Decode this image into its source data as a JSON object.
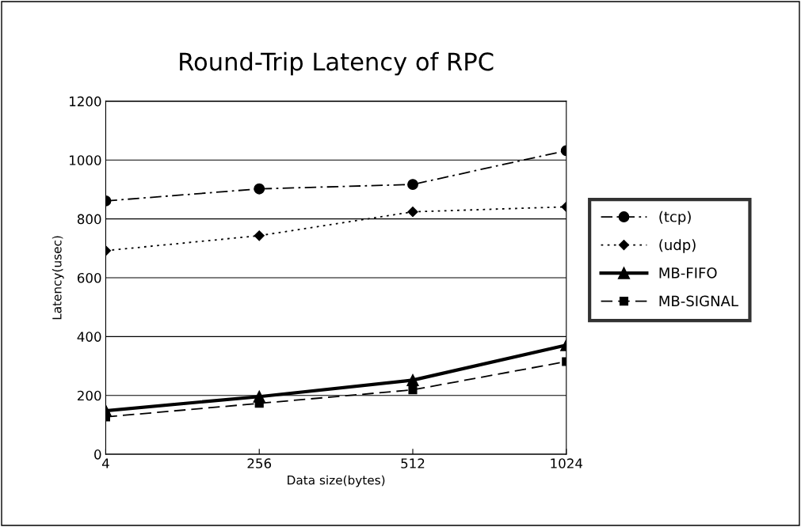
{
  "chart_data": {
    "type": "line",
    "title": "Round-Trip Latency of RPC",
    "xlabel": "Data size(bytes)",
    "ylabel": "Latency(usec)",
    "categories": [
      "4",
      "256",
      "512",
      "1024"
    ],
    "series": [
      {
        "name": "(tcp)",
        "color": "#000000",
        "values": [
          861,
          902,
          917,
          1032
        ],
        "marker": "circle",
        "line_style": "dashdot"
      },
      {
        "name": "(udp)",
        "color": "#000000",
        "values": [
          692,
          743,
          824,
          841
        ],
        "marker": "diamond",
        "line_style": "dotted"
      },
      {
        "name": "MB-FIFO",
        "color": "#000000",
        "values": [
          148,
          196,
          252,
          371
        ],
        "marker": "triangle",
        "line_style": "solid"
      },
      {
        "name": "MB-SIGNAL",
        "color": "#000000",
        "values": [
          127,
          173,
          219,
          315
        ],
        "marker": "square",
        "line_style": "dashed"
      }
    ],
    "ylim": [
      0,
      1200
    ],
    "yticks": [
      0,
      200,
      400,
      600,
      800,
      1000,
      1200
    ],
    "grid": "y",
    "legend": "right"
  }
}
